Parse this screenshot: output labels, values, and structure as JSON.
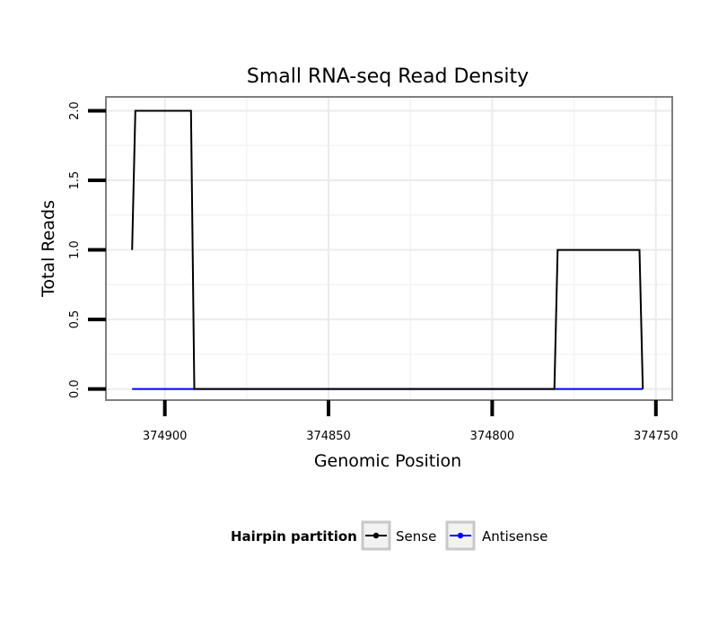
{
  "chart_data": {
    "type": "line",
    "title": "Small RNA-seq Read Density",
    "xlabel": "Genomic Position",
    "ylabel": "Total Reads",
    "xlim": [
      374918,
      374745
    ],
    "ylim": [
      -0.08,
      2.1
    ],
    "x_reversed": true,
    "grid": true,
    "x_ticks": [
      {
        "value": 374900,
        "label": "374900"
      },
      {
        "value": 374850,
        "label": "374850"
      },
      {
        "value": 374800,
        "label": "374800"
      },
      {
        "value": 374750,
        "label": "374750"
      }
    ],
    "y_ticks": [
      {
        "value": 0.0,
        "label": "0.0"
      },
      {
        "value": 0.5,
        "label": "0.5"
      },
      {
        "value": 1.0,
        "label": "1.0"
      },
      {
        "value": 1.5,
        "label": "1.5"
      },
      {
        "value": 2.0,
        "label": "2.0"
      }
    ],
    "series": [
      {
        "name": "Sense",
        "color": "#000000",
        "x": [
          374910,
          374909,
          374892,
          374891,
          374781,
          374780,
          374755,
          374754
        ],
        "y": [
          1,
          2,
          2,
          0,
          0,
          1,
          1,
          0
        ]
      },
      {
        "name": "Antisense",
        "color": "#0000ff",
        "x": [
          374910,
          374754
        ],
        "y": [
          0,
          0
        ]
      }
    ],
    "legend": {
      "title": "Hairpin partition",
      "position": "bottom",
      "entries": [
        {
          "label": "Sense",
          "color": "#000000"
        },
        {
          "label": "Antisense",
          "color": "#0000ff"
        }
      ]
    }
  }
}
